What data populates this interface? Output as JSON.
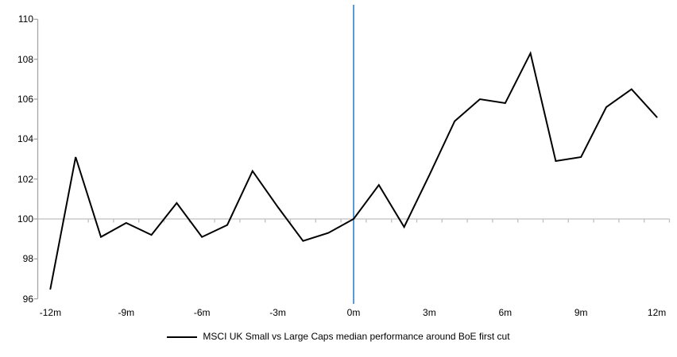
{
  "chart_data": {
    "type": "line",
    "title": "",
    "legend": "MSCI UK Small vs Large Caps median performance around BoE first cut",
    "x": [
      -12,
      -11,
      -10,
      -9,
      -8,
      -7,
      -6,
      -5,
      -4,
      -3,
      -2,
      -1,
      0,
      1,
      2,
      3,
      4,
      5,
      6,
      7,
      8,
      9,
      10,
      11,
      12
    ],
    "series": [
      {
        "name": "MSCI UK Small vs Large Caps median performance around BoE first cut",
        "values": [
          96.5,
          103.1,
          99.1,
          99.8,
          99.2,
          100.8,
          99.1,
          99.7,
          102.4,
          100.6,
          98.9,
          99.3,
          100.0,
          101.7,
          99.6,
          102.2,
          104.9,
          106.0,
          105.8,
          108.3,
          102.9,
          103.1,
          105.6,
          106.5,
          105.1
        ]
      }
    ],
    "xticks": [
      {
        "month": -12,
        "label": "-12m"
      },
      {
        "month": -9,
        "label": "-9m"
      },
      {
        "month": -6,
        "label": "-6m"
      },
      {
        "month": -3,
        "label": "-3m"
      },
      {
        "month": 0,
        "label": "0m"
      },
      {
        "month": 3,
        "label": "3m"
      },
      {
        "month": 6,
        "label": "6m"
      },
      {
        "month": 9,
        "label": "9m"
      },
      {
        "month": 12,
        "label": "12m"
      }
    ],
    "yticks": [
      96,
      98,
      100,
      102,
      104,
      106,
      108,
      110
    ],
    "ylim": [
      96,
      110
    ],
    "baseline_value": 100,
    "event_line_month": 0,
    "grid": "baseline-only",
    "legend_position": "bottom-center",
    "colors": {
      "series_line": "#000000",
      "axis": "#a6a6a6",
      "baseline": "#bfbfbf",
      "event_line": "#5b9bd5",
      "text": "#000000"
    }
  }
}
